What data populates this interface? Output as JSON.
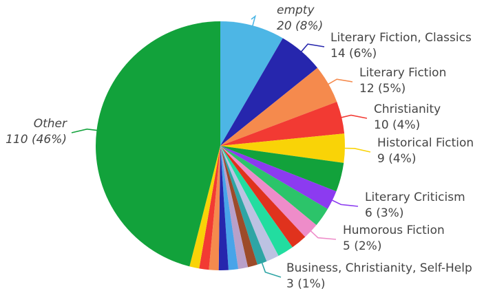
{
  "chart_data": {
    "type": "pie",
    "title": "",
    "slices": [
      {
        "label": "empty",
        "value": 20,
        "pct": "8%",
        "color": "#4DB6E5",
        "italic": true,
        "labeled": true
      },
      {
        "label": "Literary Fiction, Classics",
        "value": 14,
        "pct": "6%",
        "color": "#2626AD",
        "labeled": true
      },
      {
        "label": "Literary Fiction",
        "value": 12,
        "pct": "5%",
        "color": "#F58A4D",
        "labeled": true
      },
      {
        "label": "Christianity",
        "value": 10,
        "pct": "4%",
        "color": "#F23A33",
        "labeled": true
      },
      {
        "label": "Historical Fiction",
        "value": 9,
        "pct": "4%",
        "color": "#F9D307",
        "labeled": true
      },
      {
        "label": "",
        "value": 9,
        "pct": "",
        "color": "#12A23B",
        "labeled": false
      },
      {
        "label": "Literary Criticism",
        "value": 6,
        "pct": "3%",
        "color": "#8C3BF0",
        "labeled": true
      },
      {
        "label": "",
        "value": 6,
        "pct": "",
        "color": "#2CC46A",
        "labeled": false
      },
      {
        "label": "Humorous Fiction",
        "value": 5,
        "pct": "2%",
        "color": "#EE8CC9",
        "labeled": true
      },
      {
        "label": "",
        "value": 5,
        "pct": "",
        "color": "#E0321D",
        "labeled": false
      },
      {
        "label": "",
        "value": 5,
        "pct": "",
        "color": "#22DDA0",
        "labeled": false
      },
      {
        "label": "",
        "value": 4,
        "pct": "",
        "color": "#BCC2E2",
        "labeled": false
      },
      {
        "label": "Business, Christianity, Self-Help",
        "value": 3,
        "pct": "1%",
        "color": "#2EA5A5",
        "labeled": true
      },
      {
        "label": "",
        "value": 3,
        "pct": "",
        "color": "#9C4B2A",
        "labeled": false
      },
      {
        "label": "",
        "value": 3,
        "pct": "",
        "color": "#B9A0C9",
        "labeled": false
      },
      {
        "label": "",
        "value": 3,
        "pct": "",
        "color": "#48A4E9",
        "labeled": false
      },
      {
        "label": "",
        "value": 3,
        "pct": "",
        "color": "#2626AD",
        "labeled": false
      },
      {
        "label": "",
        "value": 3,
        "pct": "",
        "color": "#F58A4D",
        "labeled": false
      },
      {
        "label": "",
        "value": 3,
        "pct": "",
        "color": "#F23A33",
        "labeled": false
      },
      {
        "label": "",
        "value": 3,
        "pct": "",
        "color": "#F9D307",
        "labeled": false
      },
      {
        "label": "Other",
        "value": 110,
        "pct": "46%",
        "color": "#12A23B",
        "italic": true,
        "labeled": true
      }
    ]
  }
}
